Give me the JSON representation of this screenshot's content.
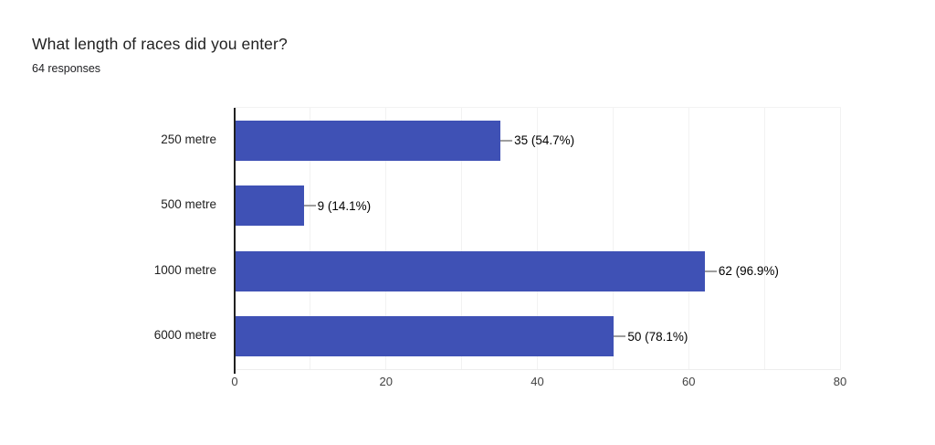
{
  "header": {
    "title": "What length of races did you enter?",
    "subtitle": "64 responses"
  },
  "chart_data": {
    "type": "bar",
    "orientation": "horizontal",
    "title": "What length of races did you enter?",
    "subtitle": "64 responses",
    "total_responses": 64,
    "categories": [
      "250 metre",
      "500 metre",
      "1000 metre",
      "6000 metre"
    ],
    "values": [
      35,
      9,
      62,
      50
    ],
    "value_labels": [
      "35 (54.7%)",
      "9 (14.1%)",
      "62 (96.9%)",
      "50 (78.1%)"
    ],
    "xlim": [
      0,
      80
    ],
    "x_ticks": [
      0,
      20,
      40,
      60,
      80
    ],
    "grid_step": 10,
    "grid": true,
    "legend": "none",
    "bar_color": "#3f51b5",
    "leader_line_color": "#9e9e9e",
    "axis_line_color": "#212121",
    "gridline_color": "#f2f2f2"
  }
}
